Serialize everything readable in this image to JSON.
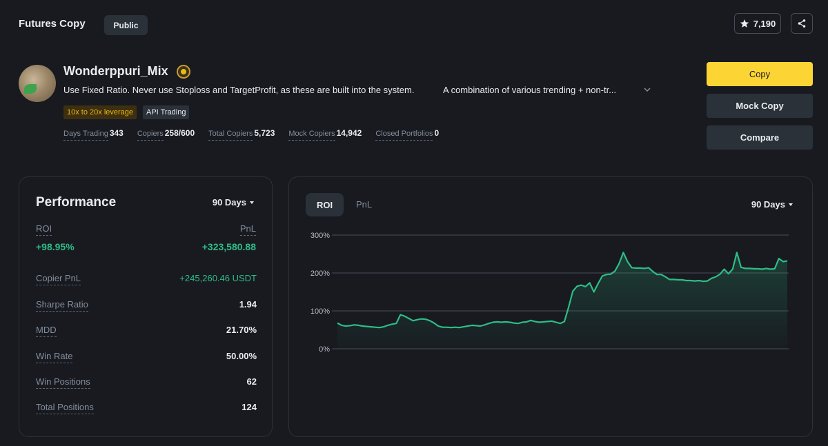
{
  "header": {
    "title": "Futures Copy",
    "visibility": "Public",
    "favorites": "7,190"
  },
  "trader": {
    "name": "Wonderppuri_Mix",
    "bio": "Use Fixed Ratio. Never use Stoploss and TargetProfit, as these are built into the system.",
    "bio_more": "A combination of various trending + non-tr...",
    "tags": [
      "10x to 20x leverage",
      "API Trading"
    ],
    "stats": [
      {
        "label": "Days Trading",
        "value": "343"
      },
      {
        "label": "Copiers",
        "value": "258/600"
      },
      {
        "label": "Total Copiers",
        "value": "5,723"
      },
      {
        "label": "Mock Copiers",
        "value": "14,942"
      },
      {
        "label": "Closed Portfolios",
        "value": "0"
      }
    ]
  },
  "actions": {
    "copy": "Copy",
    "mock_copy": "Mock Copy",
    "compare": "Compare"
  },
  "performance": {
    "title": "Performance",
    "period": "90 Days",
    "roi_label": "ROI",
    "roi_value": "+98.95%",
    "pnl_label": "PnL",
    "pnl_value": "+323,580.88",
    "metrics": [
      {
        "label": "Copier PnL",
        "value": "+245,260.46 USDT"
      },
      {
        "label": "Sharpe Ratio",
        "value": "1.94"
      },
      {
        "label": "MDD",
        "value": "21.70%"
      },
      {
        "label": "Win Rate",
        "value": "50.00%"
      },
      {
        "label": "Win Positions",
        "value": "62"
      },
      {
        "label": "Total Positions",
        "value": "124"
      }
    ]
  },
  "chart_panel": {
    "tabs": [
      "ROI",
      "PnL"
    ],
    "active_tab": "ROI",
    "period": "90 Days"
  },
  "colors": {
    "background": "#181a20",
    "accent": "#fcd535",
    "positive": "#2ebd85",
    "muted": "#848e9c"
  },
  "chart_data": {
    "type": "line",
    "series": [
      {
        "values": [
          68,
          62,
          60,
          61,
          63,
          62,
          60,
          59,
          58,
          57,
          56,
          58,
          62,
          65,
          67,
          90,
          86,
          80,
          74,
          77,
          79,
          78,
          74,
          68,
          60,
          57,
          57,
          56,
          57,
          56,
          58,
          60,
          62,
          61,
          60,
          63,
          67,
          70,
          71,
          70,
          71,
          70,
          68,
          67,
          70,
          71,
          75,
          72,
          70,
          71,
          72,
          73,
          70,
          67,
          72,
          110,
          152,
          165,
          168,
          164,
          174,
          150,
          172,
          192,
          196,
          197,
          205,
          225,
          254,
          230,
          214,
          213,
          213,
          212,
          214,
          204,
          196,
          196,
          190,
          183,
          183,
          182,
          182,
          180,
          180,
          179,
          180,
          178,
          179,
          186,
          190,
          197,
          210,
          198,
          210,
          254,
          215,
          212,
          212,
          211,
          211,
          210,
          212,
          210,
          211,
          238,
          230,
          232
        ]
      }
    ],
    "yticks": [
      "300%",
      "200%",
      "100%",
      "0%"
    ],
    "ylim": [
      0,
      300
    ],
    "grid": true
  }
}
